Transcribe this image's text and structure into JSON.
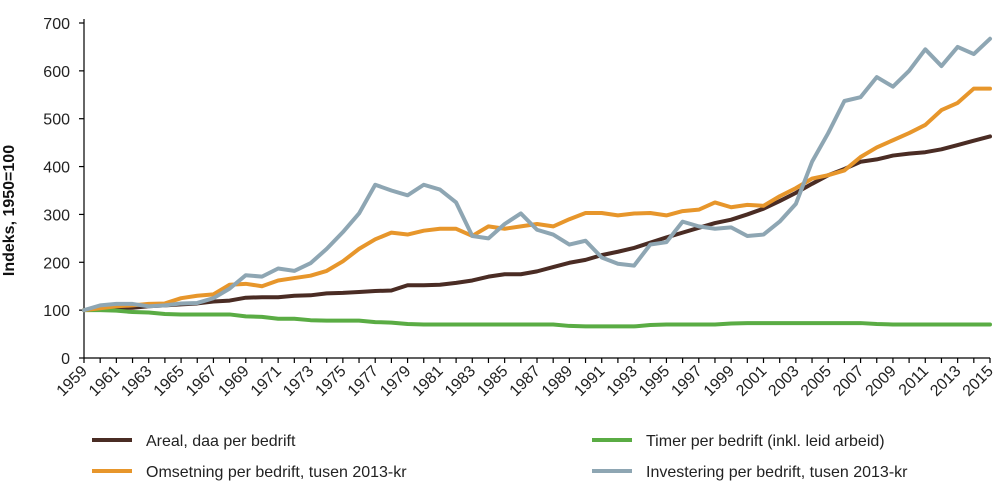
{
  "chart_data": {
    "type": "line",
    "ylabel": "Indeks, 1950=100",
    "ylim": [
      0,
      700
    ],
    "yticks": [
      0,
      100,
      200,
      300,
      400,
      500,
      600,
      700
    ],
    "xlim": [
      1959,
      2015
    ],
    "xticks": [
      "1959",
      "1961",
      "1963",
      "1965",
      "1967",
      "1969",
      "1971",
      "1973",
      "1975",
      "1977",
      "1979",
      "1981",
      "1983",
      "1985",
      "1987",
      "1989",
      "1991",
      "1993",
      "1995",
      "1997",
      "1999",
      "2001",
      "2003",
      "2005",
      "2007",
      "2009",
      "2011",
      "2013",
      "2015"
    ],
    "grid": false,
    "legend_position": "bottom",
    "x": [
      1959,
      1960,
      1961,
      1962,
      1963,
      1964,
      1965,
      1966,
      1967,
      1968,
      1969,
      1970,
      1971,
      1972,
      1973,
      1974,
      1975,
      1976,
      1977,
      1978,
      1979,
      1980,
      1981,
      1982,
      1983,
      1984,
      1985,
      1986,
      1987,
      1988,
      1989,
      1990,
      1991,
      1992,
      1993,
      1994,
      1995,
      1996,
      1997,
      1998,
      1999,
      2000,
      2001,
      2002,
      2003,
      2004,
      2005,
      2006,
      2007,
      2008,
      2009,
      2010,
      2011,
      2012,
      2013,
      2014,
      2015
    ],
    "series": [
      {
        "name": "Areal, daa per bedrift",
        "color": "#4a2c24",
        "values": [
          100,
          103,
          104,
          105,
          108,
          110,
          112,
          114,
          118,
          120,
          126,
          127,
          127,
          130,
          131,
          135,
          136,
          138,
          140,
          141,
          152,
          152,
          153,
          157,
          162,
          170,
          175,
          175,
          181,
          190,
          199,
          205,
          215,
          222,
          230,
          241,
          252,
          262,
          272,
          282,
          289,
          300,
          312,
          328,
          345,
          364,
          382,
          395,
          410,
          415,
          423,
          427,
          430,
          436,
          445,
          454,
          463
        ]
      },
      {
        "name": "Timer per bedrift (inkl. leid arbeid)",
        "color": "#5aac44",
        "values": [
          100,
          100,
          99,
          96,
          95,
          92,
          91,
          91,
          91,
          91,
          87,
          86,
          82,
          82,
          79,
          78,
          78,
          78,
          75,
          74,
          71,
          70,
          70,
          70,
          70,
          70,
          70,
          70,
          70,
          70,
          67,
          66,
          66,
          66,
          66,
          69,
          70,
          70,
          70,
          70,
          72,
          73,
          73,
          73,
          73,
          73,
          73,
          73,
          73,
          71,
          70,
          70,
          70,
          70,
          70,
          70,
          70
        ]
      },
      {
        "name": "Omsetning per bedrift, tusen 2013-kr",
        "color": "#e7962b",
        "values": [
          100,
          104,
          108,
          110,
          113,
          114,
          125,
          130,
          133,
          153,
          155,
          150,
          162,
          167,
          172,
          182,
          202,
          228,
          248,
          262,
          258,
          266,
          270,
          270,
          255,
          275,
          270,
          275,
          280,
          275,
          290,
          303,
          303,
          298,
          302,
          303,
          298,
          307,
          310,
          325,
          315,
          320,
          318,
          338,
          355,
          375,
          382,
          392,
          420,
          440,
          455,
          470,
          487,
          518,
          533,
          563,
          563
        ]
      },
      {
        "name": "Investering per bedrift, tusen 2013-kr",
        "color": "#8ea6b3",
        "values": [
          100,
          110,
          113,
          113,
          108,
          110,
          114,
          115,
          125,
          145,
          173,
          170,
          187,
          182,
          198,
          228,
          263,
          302,
          362,
          350,
          340,
          362,
          352,
          325,
          255,
          250,
          280,
          302,
          268,
          258,
          237,
          245,
          210,
          197,
          193,
          237,
          242,
          285,
          275,
          270,
          273,
          255,
          258,
          285,
          322,
          410,
          470,
          537,
          545,
          587,
          567,
          600,
          645,
          610,
          650,
          635,
          667
        ]
      }
    ]
  }
}
